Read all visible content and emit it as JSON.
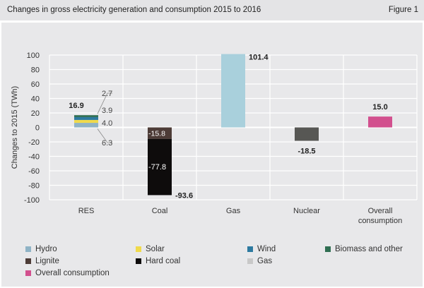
{
  "header": {
    "title": "Changes in gross electricity generation and consumption 2015 to 2016",
    "figure": "Figure 1"
  },
  "chart_data": {
    "type": "bar",
    "stacked": true,
    "title": "Changes in gross electricity generation and consumption 2015 to 2016",
    "ylabel": "Changes to 2015 (TWh)",
    "xlabel": "",
    "ylim": [
      -100,
      100
    ],
    "yticks": [
      100,
      80,
      60,
      40,
      20,
      0,
      -20,
      -40,
      -60,
      -80,
      -100
    ],
    "grid": true,
    "legend_position": "bottom",
    "categories": [
      "RES",
      "Coal",
      "Gas",
      "Nuclear",
      "Overall consumption"
    ],
    "series": [
      {
        "name": "Hydro",
        "color": "#8fb3c6",
        "values": [
          6.3,
          0,
          0,
          0,
          0
        ],
        "label": "6.3"
      },
      {
        "name": "Solar",
        "color": "#f0da4c",
        "values": [
          4.0,
          0,
          0,
          0,
          0
        ],
        "label": "4.0"
      },
      {
        "name": "Wind",
        "color": "#2d7aa0",
        "values": [
          3.9,
          0,
          0,
          0,
          0
        ],
        "label": "3.9"
      },
      {
        "name": "Biomass and other",
        "color": "#2f6e52",
        "values": [
          2.7,
          0,
          0,
          0,
          0
        ],
        "label": "2.7"
      },
      {
        "name": "Lignite",
        "color": "#4d3c37",
        "values": [
          0,
          -15.8,
          0,
          0,
          0
        ],
        "label": "-15.8"
      },
      {
        "name": "Hard coal",
        "color": "#0e0c0c",
        "values": [
          0,
          -77.8,
          0,
          0,
          0
        ],
        "label": "-77.8"
      },
      {
        "name": "Gas",
        "color": "#a9d0dc",
        "values": [
          0,
          0,
          101.4,
          0,
          0
        ]
      },
      {
        "name": "Nuclear",
        "color": "#575754",
        "values": [
          0,
          0,
          0,
          -18.5,
          0
        ]
      },
      {
        "name": "Overall consumption",
        "color": "#d2508e",
        "values": [
          0,
          0,
          0,
          0,
          15.0
        ]
      }
    ],
    "totals": [
      {
        "category": "RES",
        "label": "16.9"
      },
      {
        "category": "Coal",
        "label": "-93.6"
      },
      {
        "category": "Gas",
        "label": "101.4"
      },
      {
        "category": "Nuclear",
        "label": "-18.5"
      },
      {
        "category": "Overall consumption",
        "label": "15.0"
      }
    ]
  },
  "legend": [
    {
      "label": "Hydro",
      "color": "#8fb3c6"
    },
    {
      "label": "Solar",
      "color": "#f0da4c"
    },
    {
      "label": "Wind",
      "color": "#2d7aa0"
    },
    {
      "label": "Biomass and other",
      "color": "#2f6e52"
    },
    {
      "label": "Lignite",
      "color": "#4d3c37"
    },
    {
      "label": "Hard coal",
      "color": "#0e0c0c"
    },
    {
      "label": "Gas",
      "color": "#c8c8c8"
    },
    {
      "label": "Overall consumption",
      "color": "#d2508e"
    }
  ]
}
